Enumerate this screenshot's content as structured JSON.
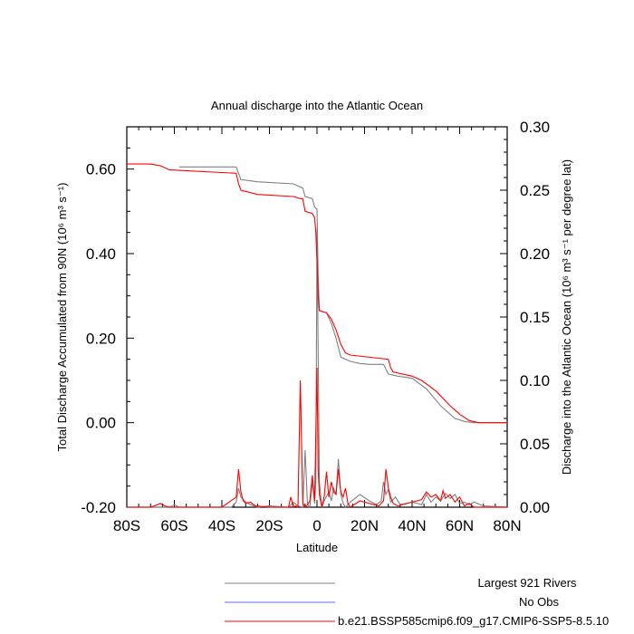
{
  "chart_data": {
    "type": "line",
    "title": "Annual discharge into the Atlantic Ocean",
    "xlabel": "Latitude",
    "ylabel_left": "Total Discharge Accumulated from 90N (10⁶ m³ s⁻¹)",
    "ylabel_right": "Discharge into the Atlantic Ocean (10⁶ m³ s⁻¹ per degree lat)",
    "xlim": [
      -80,
      80
    ],
    "ylim_left": [
      -0.2,
      0.7
    ],
    "ylim_right": [
      0.0,
      0.3
    ],
    "x_ticks": [
      {
        "value": -80,
        "label": "80S"
      },
      {
        "value": -60,
        "label": "60S"
      },
      {
        "value": -40,
        "label": "40S"
      },
      {
        "value": -20,
        "label": "20S"
      },
      {
        "value": 0,
        "label": "0"
      },
      {
        "value": 20,
        "label": "20N"
      },
      {
        "value": 40,
        "label": "40N"
      },
      {
        "value": 60,
        "label": "60N"
      },
      {
        "value": 80,
        "label": "80N"
      }
    ],
    "y_left_ticks": [
      {
        "value": 0.6,
        "label": "0.60"
      },
      {
        "value": 0.4,
        "label": "0.40"
      },
      {
        "value": 0.2,
        "label": "0.20"
      },
      {
        "value": 0.0,
        "label": "0.00"
      },
      {
        "value": -0.2,
        "label": "-0.20"
      }
    ],
    "y_right_ticks": [
      {
        "value": 0.3,
        "label": "0.30"
      },
      {
        "value": 0.25,
        "label": "0.25"
      },
      {
        "value": 0.2,
        "label": "0.20"
      },
      {
        "value": 0.15,
        "label": "0.15"
      },
      {
        "value": 0.1,
        "label": "0.10"
      },
      {
        "value": 0.05,
        "label": "0.05"
      },
      {
        "value": 0.0,
        "label": "0.00"
      }
    ],
    "series": [
      {
        "name": "Largest 921 Rivers",
        "color": "#808080",
        "accumulated": {
          "x": [
            -58,
            -34,
            -33,
            -32,
            -25,
            -10,
            -6,
            -5,
            -2,
            -1,
            0,
            0.5,
            1,
            4,
            6,
            8,
            10,
            14,
            18,
            22,
            28,
            30,
            34,
            40,
            46,
            52,
            58,
            62,
            66,
            70,
            80
          ],
          "y": [
            0.605,
            0.605,
            0.59,
            0.575,
            0.57,
            0.565,
            0.555,
            0.535,
            0.53,
            0.51,
            0.505,
            0.35,
            0.265,
            0.26,
            0.235,
            0.2,
            0.155,
            0.145,
            0.14,
            0.138,
            0.138,
            0.115,
            0.11,
            0.105,
            0.08,
            0.04,
            0.01,
            0.003,
            0.0,
            0.0,
            0.0
          ]
        },
        "per_degree": {
          "x": [
            -75,
            -62,
            -60,
            -58,
            -36,
            -34,
            -33,
            -32,
            -30,
            -28,
            -25,
            -20,
            -12,
            -10,
            -8,
            -6,
            -5,
            -4,
            -3,
            -2,
            -1,
            -0.5,
            0,
            1,
            2,
            3,
            5,
            6,
            7,
            8,
            9,
            10,
            11,
            12,
            14,
            18,
            22,
            25,
            27,
            28,
            29,
            30,
            31,
            33,
            35,
            40,
            44,
            46,
            48,
            50,
            52,
            54,
            56,
            58,
            60,
            62,
            64,
            66,
            70,
            80
          ],
          "y": [
            0.0,
            0.0,
            0.002,
            0.0,
            0.0,
            0.004,
            0.015,
            0.008,
            0.004,
            0.002,
            0.0,
            0.001,
            0.0,
            0.004,
            0.001,
            0.0,
            0.045,
            0.002,
            0.0,
            0.02,
            0.003,
            0.02,
            0.22,
            0.02,
            0.0,
            0.005,
            0.012,
            0.005,
            0.015,
            0.01,
            0.038,
            0.01,
            0.003,
            0.0,
            0.004,
            0.01,
            0.005,
            0.002,
            0.005,
            0.02,
            0.01,
            0.014,
            0.004,
            0.008,
            0.002,
            0.004,
            0.002,
            0.01,
            0.004,
            0.008,
            0.005,
            0.011,
            0.007,
            0.01,
            0.003,
            0.004,
            0.002,
            0.004,
            0.001,
            0.0
          ]
        }
      },
      {
        "name": "No Obs",
        "color": "#6666ff",
        "accumulated": {
          "x": [],
          "y": []
        },
        "per_degree": {
          "x": [],
          "y": []
        }
      },
      {
        "name": "b.e21.BSSP585cmip6.f09_g17.CMIP6-SSP5-8.5.10",
        "color": "#ff0000",
        "accumulated": {
          "x": [
            -80,
            -70,
            -66,
            -62,
            -34,
            -33,
            -32,
            -25,
            -10,
            -7,
            -6,
            -5,
            -2,
            -1,
            -0.5,
            0,
            0.5,
            1,
            4,
            6,
            8,
            10,
            12,
            14,
            30,
            31,
            32,
            40,
            44,
            50,
            56,
            60,
            64,
            68,
            80
          ],
          "y": [
            0.612,
            0.612,
            0.608,
            0.598,
            0.59,
            0.565,
            0.55,
            0.54,
            0.535,
            0.53,
            0.53,
            0.5,
            0.495,
            0.485,
            0.45,
            0.385,
            0.3,
            0.265,
            0.26,
            0.245,
            0.22,
            0.185,
            0.165,
            0.16,
            0.15,
            0.13,
            0.12,
            0.11,
            0.1,
            0.075,
            0.04,
            0.02,
            0.005,
            0.0,
            0.0
          ]
        },
        "per_degree": {
          "x": [
            -80,
            -70,
            -67,
            -66,
            -64,
            -62,
            -40,
            -34,
            -33,
            -32,
            -31,
            -30,
            -28,
            -26,
            -20,
            -12,
            -11,
            -10,
            -9,
            -8,
            -7,
            -6,
            -5,
            -4,
            -3,
            -2,
            -1,
            0,
            0.5,
            1,
            2,
            3,
            4,
            5,
            6,
            7,
            8,
            9,
            10,
            11,
            12,
            13,
            14,
            18,
            22,
            26,
            28,
            29,
            30,
            31,
            32,
            34,
            40,
            44,
            46,
            48,
            50,
            52,
            53,
            54,
            56,
            58,
            60,
            62,
            64,
            66,
            70,
            80
          ],
          "y": [
            0.0,
            0.0,
            0.002,
            0.003,
            0.001,
            0.0,
            0.0,
            0.008,
            0.03,
            0.012,
            0.005,
            0.003,
            0.004,
            0.001,
            0.0,
            0.0,
            0.008,
            0.0,
            0.001,
            0.0,
            0.1,
            0.003,
            0.0,
            0.002,
            0.005,
            0.025,
            0.005,
            0.11,
            0.03,
            0.01,
            0.0,
            0.008,
            0.028,
            0.008,
            0.02,
            0.012,
            0.01,
            0.03,
            0.012,
            0.008,
            0.015,
            0.003,
            0.0,
            0.005,
            0.003,
            0.001,
            0.005,
            0.03,
            0.015,
            0.008,
            0.003,
            0.001,
            0.004,
            0.006,
            0.012,
            0.008,
            0.01,
            0.005,
            0.013,
            0.007,
            0.01,
            0.004,
            0.008,
            0.001,
            0.003,
            0.0,
            0.0,
            0.0
          ]
        }
      }
    ],
    "legend_placement": "bottom"
  }
}
